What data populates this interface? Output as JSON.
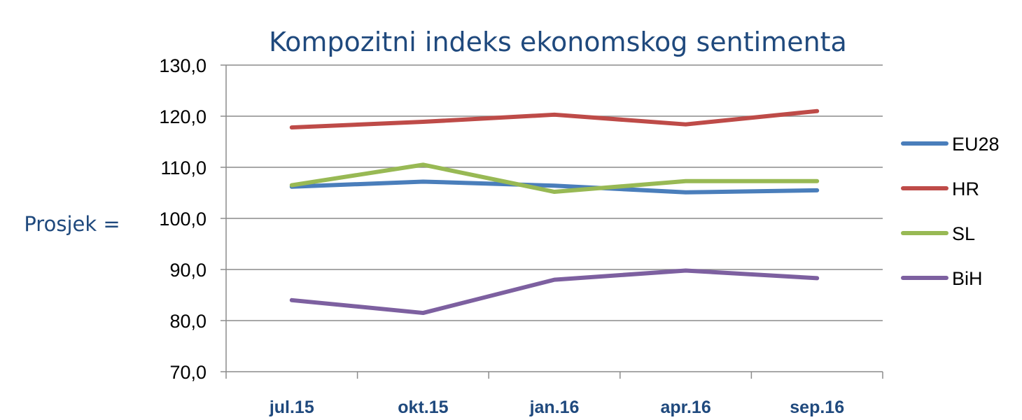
{
  "chart_data": {
    "type": "line",
    "title": "Kompozitni indeks ekonomskog sentimenta",
    "ylabel": "Prosjek  =",
    "xlabel": "",
    "categories": [
      "jul.15",
      "okt.15",
      "jan.16",
      "apr.16",
      "sep.16"
    ],
    "ylim": [
      70,
      130
    ],
    "yticks": [
      "70,0",
      "80,0",
      "90,0",
      "100,0",
      "110,0",
      "120,0",
      "130,0"
    ],
    "grid": true,
    "legend_position": "right",
    "series": [
      {
        "name": "EU28",
        "color": "#4a7ebb",
        "values": [
          106.2,
          107.2,
          106.4,
          105.1,
          105.5
        ]
      },
      {
        "name": "HR",
        "color": "#be4b48",
        "values": [
          117.8,
          118.9,
          120.3,
          118.4,
          121.0
        ]
      },
      {
        "name": "SL",
        "color": "#98b954",
        "values": [
          106.5,
          110.5,
          105.2,
          107.3,
          107.3
        ]
      },
      {
        "name": "BiH",
        "color": "#7d60a0",
        "values": [
          84.0,
          81.5,
          88.0,
          89.8,
          88.3
        ]
      }
    ]
  }
}
